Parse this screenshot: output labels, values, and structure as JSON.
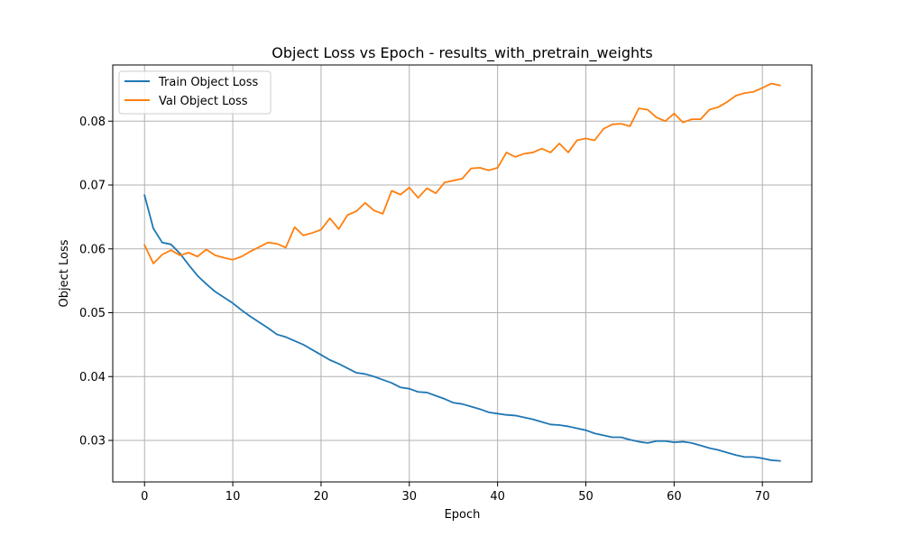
{
  "chart_data": {
    "type": "line",
    "title": "Object Loss vs Epoch - results_with_pretrain_weights",
    "xlabel": "Epoch",
    "ylabel": "Object Loss",
    "xlim": [
      -3.6,
      75.6
    ],
    "ylim": [
      0.0235,
      0.0888
    ],
    "x_ticks": [
      0,
      10,
      20,
      30,
      40,
      50,
      60,
      70
    ],
    "y_ticks": [
      0.03,
      0.04,
      0.05,
      0.06,
      0.07,
      0.08
    ],
    "y_tick_labels": [
      "0.03",
      "0.04",
      "0.05",
      "0.06",
      "0.07",
      "0.08"
    ],
    "grid": true,
    "legend_position": "top-left",
    "x": [
      0,
      1,
      2,
      3,
      4,
      5,
      6,
      7,
      8,
      9,
      10,
      11,
      12,
      13,
      14,
      15,
      16,
      17,
      18,
      19,
      20,
      21,
      22,
      23,
      24,
      25,
      26,
      27,
      28,
      29,
      30,
      31,
      32,
      33,
      34,
      35,
      36,
      37,
      38,
      39,
      40,
      41,
      42,
      43,
      44,
      45,
      46,
      47,
      48,
      49,
      50,
      51,
      52,
      53,
      54,
      55,
      56,
      57,
      58,
      59,
      60,
      61,
      62,
      63,
      64,
      65,
      66,
      67,
      68,
      69,
      70,
      71,
      72
    ],
    "series": [
      {
        "name": "Train Object Loss",
        "color": "#1f77b4",
        "values": [
          0.0684,
          0.0632,
          0.061,
          0.0607,
          0.0593,
          0.0575,
          0.0558,
          0.0545,
          0.0533,
          0.0524,
          0.0515,
          0.0504,
          0.0494,
          0.0485,
          0.0476,
          0.0466,
          0.0462,
          0.0456,
          0.045,
          0.0442,
          0.0434,
          0.0426,
          0.042,
          0.0413,
          0.0406,
          0.0404,
          0.04,
          0.0395,
          0.039,
          0.0383,
          0.0381,
          0.0376,
          0.0375,
          0.037,
          0.0365,
          0.0359,
          0.0357,
          0.0353,
          0.0349,
          0.0344,
          0.0342,
          0.034,
          0.0339,
          0.0336,
          0.0333,
          0.0329,
          0.0325,
          0.0324,
          0.0322,
          0.0319,
          0.0316,
          0.0311,
          0.0308,
          0.0305,
          0.0305,
          0.0301,
          0.0298,
          0.0296,
          0.0299,
          0.0299,
          0.0297,
          0.0298,
          0.0296,
          0.0292,
          0.0288,
          0.0285,
          0.0281,
          0.0277,
          0.0274,
          0.0274,
          0.0272,
          0.0269,
          0.0268
        ]
      },
      {
        "name": "Val Object Loss",
        "color": "#ff7f0e",
        "values": [
          0.0606,
          0.0577,
          0.0591,
          0.0598,
          0.059,
          0.0594,
          0.0588,
          0.0599,
          0.059,
          0.0586,
          0.0583,
          0.0588,
          0.0596,
          0.0603,
          0.061,
          0.0608,
          0.0602,
          0.0634,
          0.0621,
          0.0625,
          0.063,
          0.0648,
          0.0631,
          0.0653,
          0.0659,
          0.0672,
          0.066,
          0.0655,
          0.0691,
          0.0685,
          0.0696,
          0.068,
          0.0695,
          0.0687,
          0.0704,
          0.0707,
          0.071,
          0.0726,
          0.0727,
          0.0723,
          0.0727,
          0.0751,
          0.0744,
          0.0749,
          0.0751,
          0.0757,
          0.0751,
          0.0765,
          0.0751,
          0.077,
          0.0773,
          0.077,
          0.0788,
          0.0795,
          0.0796,
          0.0792,
          0.082,
          0.0818,
          0.0806,
          0.08,
          0.0812,
          0.0798,
          0.0803,
          0.0803,
          0.0818,
          0.0822,
          0.083,
          0.084,
          0.0844,
          0.0846,
          0.0852,
          0.0859,
          0.0856
        ]
      }
    ]
  }
}
